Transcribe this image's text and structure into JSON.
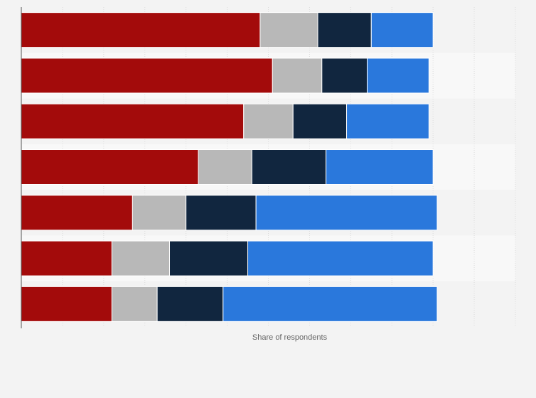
{
  "chart_data": {
    "type": "bar",
    "orientation": "horizontal",
    "stacked": true,
    "xlabel": "Share of respondents",
    "ylabel": "",
    "xlim": [
      0,
      120
    ],
    "grid": true,
    "legend": "none",
    "categories": [
      "",
      "",
      "",
      "",
      "",
      "",
      ""
    ],
    "series": [
      {
        "color": "#a30b0b",
        "values": [
          58,
          61,
          54,
          43,
          27,
          22,
          22
        ]
      },
      {
        "color": "#b8b8b8",
        "values": [
          14,
          12,
          12,
          13,
          13,
          14,
          11
        ]
      },
      {
        "color": "#11263f",
        "values": [
          13,
          11,
          13,
          18,
          17,
          19,
          16
        ]
      },
      {
        "color": "#2a78dc",
        "values": [
          15,
          15,
          20,
          26,
          44,
          45,
          52
        ]
      }
    ]
  }
}
